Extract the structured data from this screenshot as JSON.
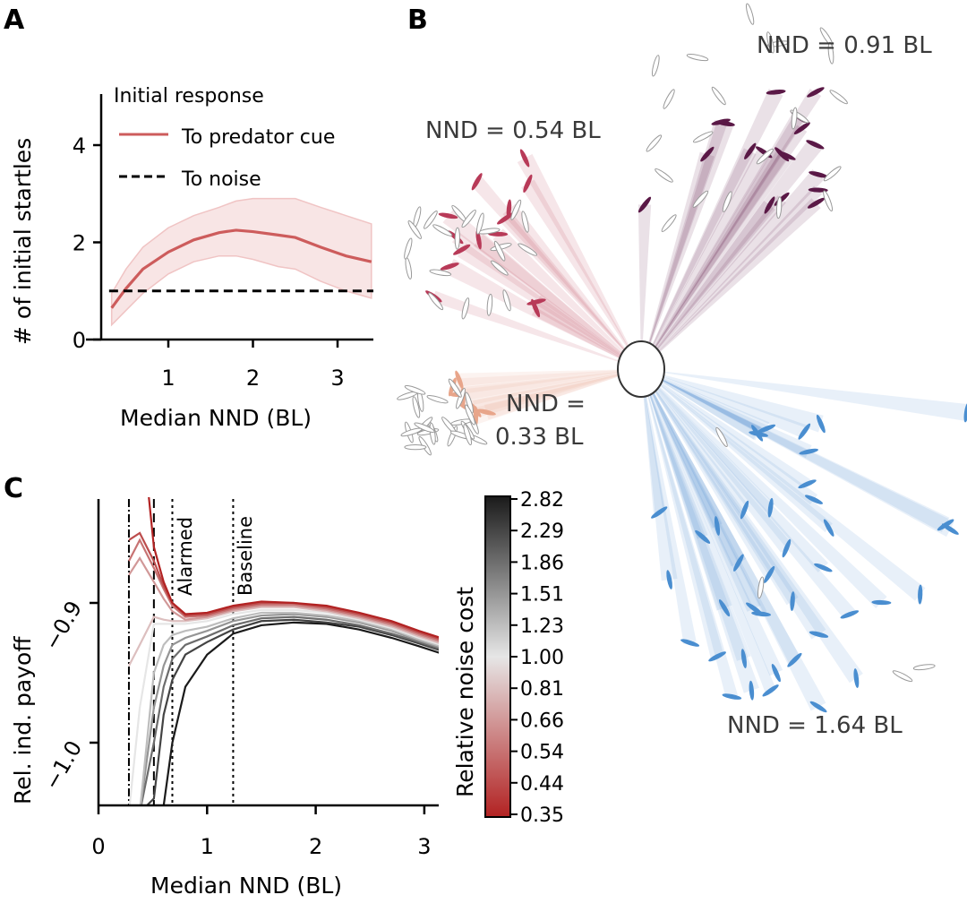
{
  "figure": {
    "panels": [
      "A",
      "B",
      "C"
    ]
  },
  "chart_data": [
    {
      "panel": "A",
      "type": "line",
      "title": "",
      "xlabel": "Median NND (BL)",
      "ylabel": "# of initial startles",
      "xlim": [
        0.25,
        3.45
      ],
      "ylim": [
        0,
        4.9
      ],
      "xticks": [
        1,
        2,
        3
      ],
      "yticks": [
        0,
        2,
        4
      ],
      "grid": false,
      "legend": {
        "title": "Initial response",
        "placement": "top",
        "entries": [
          {
            "label": "To predator cue",
            "style": "solid",
            "color": "#cd5c5c"
          },
          {
            "label": "To noise",
            "style": "dashed",
            "color": "#000000"
          }
        ]
      },
      "series": [
        {
          "name": "To predator cue",
          "color": "#cd5c5c",
          "x": [
            0.33,
            0.5,
            0.7,
            1.0,
            1.3,
            1.6,
            1.8,
            2.0,
            2.3,
            2.5,
            2.8,
            3.1,
            3.4
          ],
          "y": [
            0.65,
            1.05,
            1.45,
            1.8,
            2.05,
            2.2,
            2.25,
            2.22,
            2.15,
            2.1,
            1.9,
            1.72,
            1.6
          ],
          "lower": [
            0.3,
            0.6,
            0.95,
            1.35,
            1.6,
            1.72,
            1.72,
            1.65,
            1.5,
            1.45,
            1.2,
            1.0,
            0.85
          ],
          "upper": [
            0.95,
            1.45,
            1.9,
            2.3,
            2.55,
            2.72,
            2.85,
            2.9,
            2.9,
            2.9,
            2.72,
            2.55,
            2.38
          ]
        },
        {
          "name": "To noise",
          "color": "#000000",
          "x": [
            0.3,
            3.45
          ],
          "y": [
            1.0,
            1.0
          ]
        }
      ]
    },
    {
      "panel": "B",
      "type": "scatter",
      "title": "",
      "description": "Visual rays from a focal fish (white circle) to visible group members in four schools of different density",
      "groups": [
        {
          "label": "NND = 0.91 BL",
          "nnd": 0.91,
          "color": "#5a1846"
        },
        {
          "label": "NND = 0.54 BL",
          "nnd": 0.54,
          "color": "#b83a58"
        },
        {
          "label": "NND = 0.33 BL",
          "nnd": 0.33,
          "color": "#e8a58a"
        },
        {
          "label": "NND = 1.64 BL",
          "nnd": 1.64,
          "color": "#4a8ed0"
        }
      ],
      "labels": {
        "g091_line1": "NND = 0.91 BL",
        "g054_line1": "NND = 0.54 BL",
        "g033_line1": "NND =",
        "g033_line2": "0.33 BL",
        "g164_line1": "NND = 1.64 BL"
      }
    },
    {
      "panel": "C",
      "type": "line",
      "title": "",
      "xlabel": "Median NND (BL)",
      "ylabel": "Rel. ind. payoff",
      "xlim": [
        0,
        3.15
      ],
      "ylim": [
        -1.045,
        -0.82
      ],
      "xticks": [
        0,
        1,
        2,
        3
      ],
      "yticks": [
        -1.0,
        -0.9
      ],
      "ytick_labels": [
        "−1.0",
        "−0.9"
      ],
      "grid": false,
      "vlines": [
        {
          "x": 0.28,
          "style": "dashdot",
          "label": ""
        },
        {
          "x": 0.51,
          "style": "dashed",
          "label": ""
        },
        {
          "x": 0.68,
          "style": "dotted",
          "label": "Alarmed"
        },
        {
          "x": 1.24,
          "style": "dotted",
          "label": "Baseline"
        }
      ],
      "colorbar": {
        "label": "Relative noise cost",
        "ticks": [
          "2.82",
          "2.29",
          "1.86",
          "1.51",
          "1.23",
          "1.00",
          "0.81",
          "0.66",
          "0.54",
          "0.44",
          "0.35"
        ],
        "colors_low_to_high": [
          "#b22222",
          "#e6e6e6",
          "#1a1a1a"
        ]
      },
      "x": [
        0.28,
        0.38,
        0.51,
        0.6,
        0.68,
        0.8,
        1.0,
        1.24,
        1.5,
        1.8,
        2.1,
        2.4,
        2.7,
        2.95,
        3.15
      ],
      "series": [
        {
          "noise_cost": 0.35,
          "y": [
            -0.73,
            -0.76,
            -0.86,
            -0.885,
            -0.9,
            -0.908,
            -0.907,
            -0.902,
            -0.899,
            -0.9,
            -0.902,
            -0.907,
            -0.913,
            -0.92,
            -0.925
          ]
        },
        {
          "noise_cost": 0.44,
          "y": [
            -0.855,
            -0.85,
            -0.87,
            -0.888,
            -0.9,
            -0.909,
            -0.908,
            -0.903,
            -0.9,
            -0.9,
            -0.903,
            -0.908,
            -0.914,
            -0.921,
            -0.926
          ]
        },
        {
          "noise_cost": 0.54,
          "y": [
            -0.87,
            -0.855,
            -0.875,
            -0.89,
            -0.902,
            -0.91,
            -0.909,
            -0.904,
            -0.901,
            -0.901,
            -0.904,
            -0.909,
            -0.915,
            -0.922,
            -0.927
          ]
        },
        {
          "noise_cost": 0.66,
          "y": [
            -0.88,
            -0.868,
            -0.885,
            -0.897,
            -0.906,
            -0.912,
            -0.91,
            -0.905,
            -0.902,
            -0.902,
            -0.905,
            -0.91,
            -0.916,
            -0.923,
            -0.928
          ]
        },
        {
          "noise_cost": 0.81,
          "y": [
            -0.945,
            -0.93,
            -0.91,
            -0.912,
            -0.913,
            -0.913,
            -0.911,
            -0.906,
            -0.903,
            -0.903,
            -0.906,
            -0.911,
            -0.917,
            -0.924,
            -0.929
          ]
        },
        {
          "noise_cost": 1.0,
          "y": [
            -1.05,
            -0.975,
            -0.915,
            -0.915,
            -0.915,
            -0.915,
            -0.913,
            -0.908,
            -0.905,
            -0.905,
            -0.907,
            -0.912,
            -0.918,
            -0.925,
            -0.93
          ]
        },
        {
          "noise_cost": 1.23,
          "y": [
            -1.05,
            -1.05,
            -0.95,
            -0.93,
            -0.923,
            -0.92,
            -0.917,
            -0.911,
            -0.907,
            -0.907,
            -0.909,
            -0.913,
            -0.919,
            -0.926,
            -0.931
          ]
        },
        {
          "noise_cost": 1.51,
          "y": [
            -1.05,
            -1.05,
            -0.975,
            -0.945,
            -0.93,
            -0.925,
            -0.92,
            -0.913,
            -0.909,
            -0.908,
            -0.91,
            -0.914,
            -0.92,
            -0.927,
            -0.932
          ]
        },
        {
          "noise_cost": 1.86,
          "y": [
            -1.05,
            -1.05,
            -1.0,
            -0.96,
            -0.94,
            -0.93,
            -0.924,
            -0.916,
            -0.911,
            -0.91,
            -0.912,
            -0.916,
            -0.922,
            -0.928,
            -0.933
          ]
        },
        {
          "noise_cost": 2.29,
          "y": [
            -1.05,
            -1.05,
            -1.04,
            -0.98,
            -0.955,
            -0.937,
            -0.928,
            -0.919,
            -0.913,
            -0.912,
            -0.914,
            -0.917,
            -0.923,
            -0.929,
            -0.934
          ]
        },
        {
          "noise_cost": 2.82,
          "y": [
            -1.05,
            -1.05,
            -1.05,
            -1.045,
            -1.0,
            -0.96,
            -0.937,
            -0.922,
            -0.916,
            -0.914,
            -0.915,
            -0.919,
            -0.925,
            -0.931,
            -0.936
          ]
        }
      ]
    }
  ]
}
